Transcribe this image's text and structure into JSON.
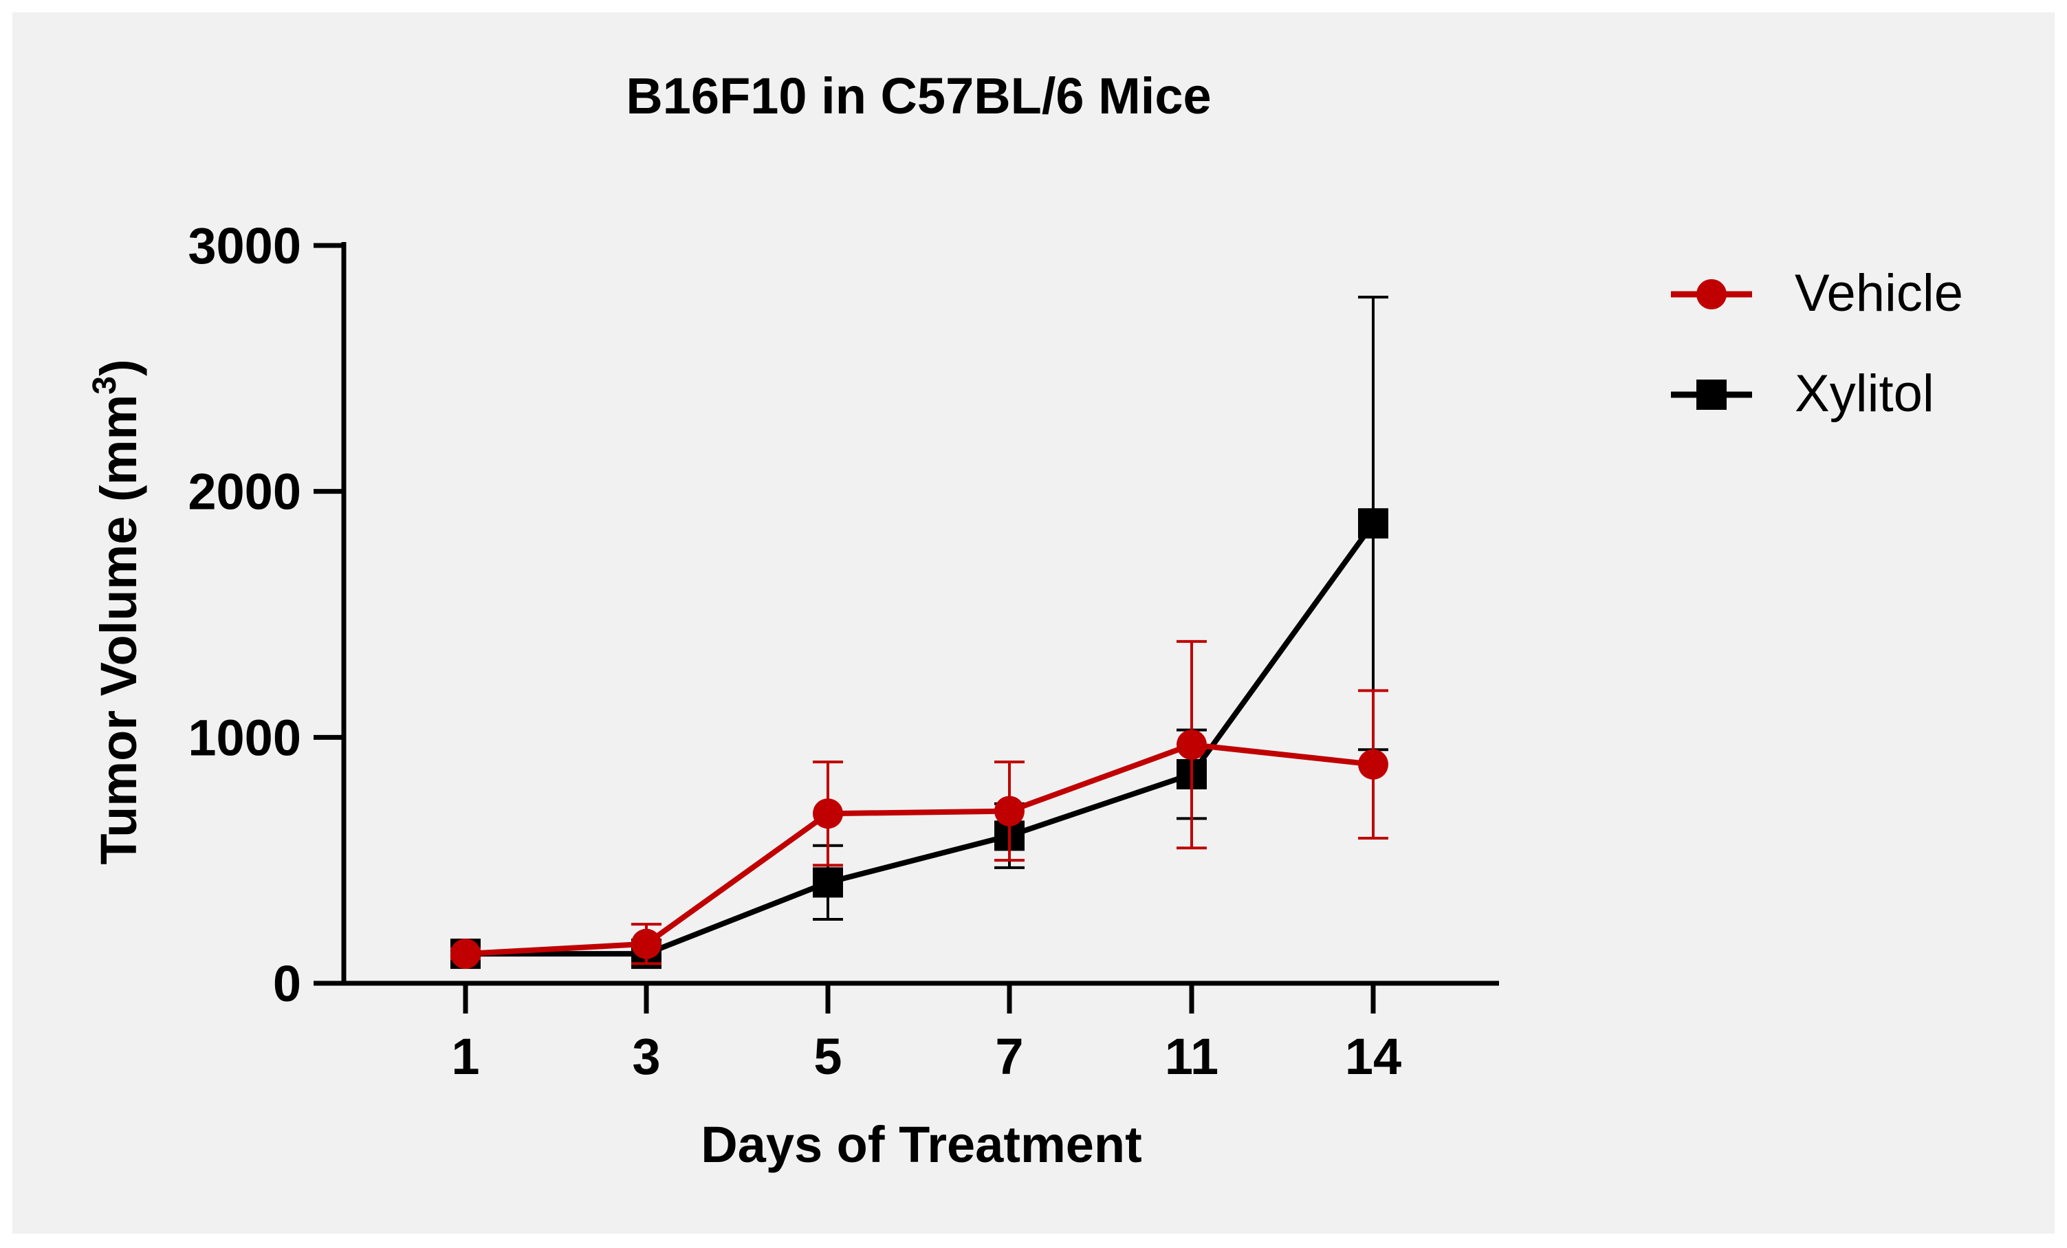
{
  "chart_data": {
    "type": "line",
    "title": "B16F10 in C57BL/6 Mice",
    "xlabel": "Days of Treatment",
    "ylabel_main": "Tumor Volume (mm",
    "ylabel_sup": "3",
    "ylabel_close": ")",
    "categories": [
      "1",
      "3",
      "5",
      "7",
      "11",
      "14"
    ],
    "ylim": [
      0,
      3000
    ],
    "yticks": [
      0,
      1000,
      2000,
      3000
    ],
    "ytick_labels": [
      "0",
      "1000",
      "2000",
      "3000"
    ],
    "legend_position": "top-right",
    "series": [
      {
        "name": "Xylitol",
        "marker": "square",
        "color": "#000000",
        "values": [
          120,
          120,
          410,
          600,
          850,
          1870
        ],
        "error": [
          20,
          20,
          150,
          130,
          180,
          920
        ]
      },
      {
        "name": "Vehicle",
        "marker": "circle",
        "color": "#c00000",
        "values": [
          120,
          160,
          690,
          700,
          970,
          890
        ],
        "error": [
          20,
          80,
          210,
          200,
          420,
          300
        ]
      }
    ]
  }
}
